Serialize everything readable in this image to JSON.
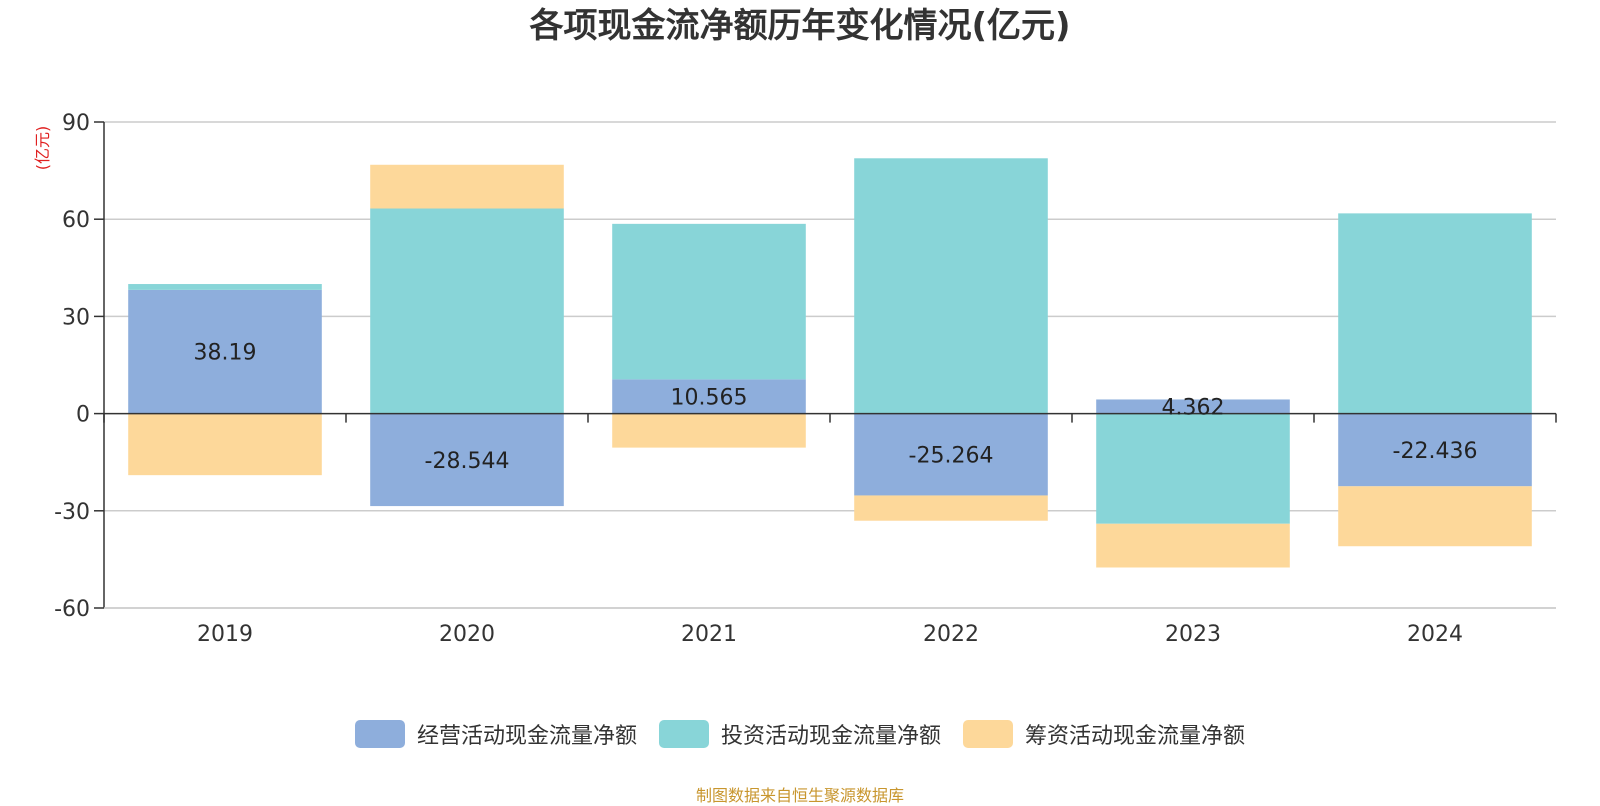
{
  "chart_data": {
    "type": "bar",
    "stacked": true,
    "title": "各项现金流净额历年变化情况(亿元)",
    "ylabel": "(亿元)",
    "categories": [
      "2019",
      "2020",
      "2021",
      "2022",
      "2023",
      "2024"
    ],
    "ylim": [
      -60,
      90
    ],
    "yticks": [
      90,
      60,
      30,
      0,
      -30,
      -60
    ],
    "grid": true,
    "legend_position": "bottom",
    "series": [
      {
        "name": "经营活动现金流量净额",
        "color": "#8eaedc",
        "values": [
          38.19,
          -28.544,
          10.565,
          -25.264,
          4.362,
          -22.436
        ],
        "labels": [
          "38.19",
          "-28.544",
          "10.565",
          "-25.264",
          "4.362",
          "-22.436"
        ]
      },
      {
        "name": "投资活动现金流量净额",
        "color": "#88d5d8",
        "values": [
          1.8,
          63.3,
          48.0,
          78.8,
          -34.0,
          61.8
        ]
      },
      {
        "name": "筹资活动现金流量净额",
        "color": "#fdd89a",
        "values": [
          -19.0,
          13.5,
          -10.5,
          -7.8,
          -13.5,
          -18.5
        ]
      }
    ],
    "source": "制图数据来自恒生聚源数据库"
  }
}
